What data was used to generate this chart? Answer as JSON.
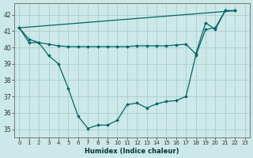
{
  "xlabel": "Humidex (Indice chaleur)",
  "ylabel": "",
  "xlim": [
    -0.5,
    23.5
  ],
  "ylim": [
    34.5,
    42.7
  ],
  "yticks": [
    35,
    36,
    37,
    38,
    39,
    40,
    41,
    42
  ],
  "xticks": [
    0,
    1,
    2,
    3,
    4,
    5,
    6,
    7,
    8,
    9,
    10,
    11,
    12,
    13,
    14,
    15,
    16,
    17,
    18,
    19,
    20,
    21,
    22,
    23
  ],
  "background_color": "#cde8e8",
  "grid_color": "#aacece",
  "line_color": "#006666",
  "series1_x": [
    0,
    1,
    2,
    3,
    4,
    5,
    6,
    7,
    8,
    9,
    10,
    11,
    12,
    13,
    14,
    15,
    16,
    17,
    18,
    19,
    20,
    21,
    22
  ],
  "series1_y": [
    41.2,
    40.5,
    40.3,
    39.5,
    39.0,
    37.5,
    35.8,
    35.05,
    35.25,
    35.25,
    35.55,
    36.5,
    36.6,
    36.3,
    36.55,
    36.7,
    36.75,
    37.0,
    39.5,
    41.1,
    41.2,
    42.25,
    42.25
  ],
  "series2_x": [
    0,
    1,
    2,
    3,
    4,
    5,
    6,
    7,
    8,
    9,
    10,
    11,
    12,
    13,
    14,
    15,
    16,
    17,
    18,
    19,
    20,
    21,
    22
  ],
  "series2_y": [
    41.2,
    40.3,
    40.3,
    40.2,
    40.1,
    40.05,
    40.05,
    40.05,
    40.05,
    40.05,
    40.05,
    40.05,
    40.1,
    40.1,
    40.1,
    40.1,
    40.15,
    40.2,
    39.6,
    41.5,
    41.1,
    42.25,
    42.25
  ],
  "series3_x": [
    0,
    22
  ],
  "series3_y": [
    41.2,
    42.25
  ]
}
